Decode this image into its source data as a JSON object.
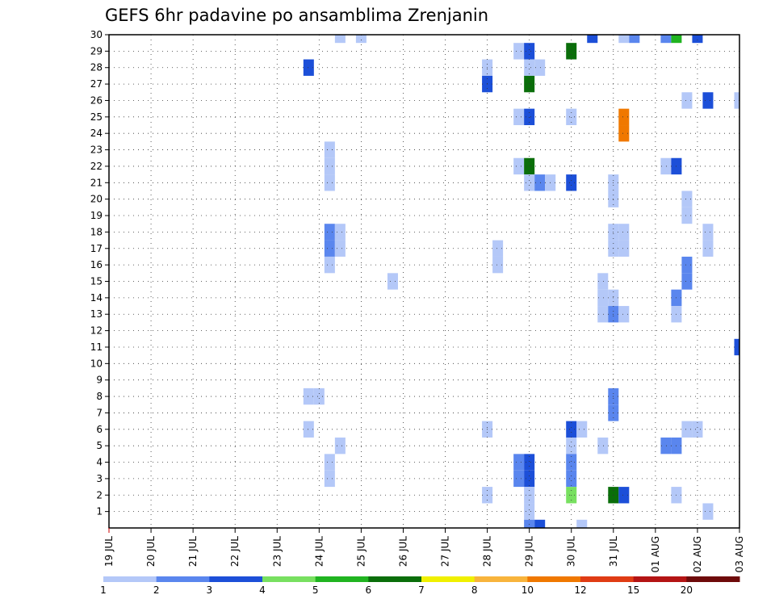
{
  "chart_data": {
    "type": "heatmap",
    "title": "GEFS 6hr padavine po ansamblima Zrenjanin",
    "xlabel": "",
    "ylabel": "",
    "x_tick_labels": [
      "19 JUL",
      "20 JUL",
      "21 JUL",
      "22 JUL",
      "23 JUL",
      "24 JUL",
      "25 JUL",
      "26 JUL",
      "27 JUL",
      "28 JUL",
      "29 JUL",
      "30 JUL",
      "31 JUL",
      "01 AUG",
      "02 AUG",
      "03 AUG"
    ],
    "x_step": "6hr",
    "ylim": [
      0,
      30
    ],
    "y_ticks": [
      1,
      2,
      3,
      4,
      5,
      6,
      7,
      8,
      9,
      10,
      11,
      12,
      13,
      14,
      15,
      16,
      17,
      18,
      19,
      20,
      21,
      22,
      23,
      24,
      25,
      26,
      27,
      28,
      29,
      30
    ],
    "grid": true,
    "colorbar": {
      "position": "bottom",
      "levels": [
        "1",
        "2",
        "3",
        "4",
        "5",
        "6",
        "7",
        "8",
        "10",
        "12",
        "15",
        "20"
      ],
      "colors": [
        "#b4c8f8",
        "#5a86ee",
        "#1c4fd8",
        "#78e060",
        "#20b420",
        "#0a6e0a",
        "#f0f000",
        "#f8b43c",
        "#f07800",
        "#e03c14",
        "#b41414",
        "#6e0a0a"
      ]
    },
    "cells": [
      {
        "m": 30,
        "t": "24 JUL 12z",
        "v": 1
      },
      {
        "m": 30,
        "t": "25 JUL 00z",
        "v": 1
      },
      {
        "m": 30,
        "t": "30 JUL 12z",
        "v": 3
      },
      {
        "m": 30,
        "t": "31 JUL 06z",
        "v": 1
      },
      {
        "m": 30,
        "t": "31 JUL 12z",
        "v": 2
      },
      {
        "m": 30,
        "t": "01 AUG 06z",
        "v": 2
      },
      {
        "m": 30,
        "t": "01 AUG 12z",
        "v": 5
      },
      {
        "m": 30,
        "t": "02 AUG 00z",
        "v": 3
      },
      {
        "m": 29,
        "t": "28 JUL 18z",
        "v": 1
      },
      {
        "m": 29,
        "t": "29 JUL 00z",
        "v": 3
      },
      {
        "m": 29,
        "t": "30 JUL 00z",
        "v": 6
      },
      {
        "m": 28,
        "t": "23 JUL 18z",
        "v": 3
      },
      {
        "m": 28,
        "t": "28 JUL 00z",
        "v": 1
      },
      {
        "m": 28,
        "t": "29 JUL 00z",
        "v": 1
      },
      {
        "m": 28,
        "t": "29 JUL 06z",
        "v": 1
      },
      {
        "m": 27,
        "t": "28 JUL 00z",
        "v": 3
      },
      {
        "m": 27,
        "t": "29 JUL 00z",
        "v": 6
      },
      {
        "m": 26,
        "t": "01 AUG 18z",
        "v": 1
      },
      {
        "m": 26,
        "t": "02 AUG 06z",
        "v": 3
      },
      {
        "m": 26,
        "t": "03 AUG 00z",
        "v": 1
      },
      {
        "m": 25,
        "t": "28 JUL 18z",
        "v": 1
      },
      {
        "m": 25,
        "t": "29 JUL 00z",
        "v": 3
      },
      {
        "m": 25,
        "t": "30 JUL 00z",
        "v": 1
      },
      {
        "m": 25,
        "t": "31 JUL 06z",
        "v": 10
      },
      {
        "m": 24,
        "t": "31 JUL 06z",
        "v": 10
      },
      {
        "m": 23,
        "t": "24 JUL 06z",
        "v": 1
      },
      {
        "m": 22,
        "t": "24 JUL 06z",
        "v": 1
      },
      {
        "m": 22,
        "t": "28 JUL 18z",
        "v": 1
      },
      {
        "m": 22,
        "t": "29 JUL 00z",
        "v": 6
      },
      {
        "m": 22,
        "t": "01 AUG 06z",
        "v": 1
      },
      {
        "m": 22,
        "t": "01 AUG 12z",
        "v": 3
      },
      {
        "m": 21,
        "t": "24 JUL 06z",
        "v": 1
      },
      {
        "m": 21,
        "t": "29 JUL 00z",
        "v": 1
      },
      {
        "m": 21,
        "t": "29 JUL 06z",
        "v": 2
      },
      {
        "m": 21,
        "t": "29 JUL 12z",
        "v": 1
      },
      {
        "m": 21,
        "t": "30 JUL 00z",
        "v": 3
      },
      {
        "m": 21,
        "t": "31 JUL 00z",
        "v": 1
      },
      {
        "m": 20,
        "t": "31 JUL 00z",
        "v": 1
      },
      {
        "m": 20,
        "t": "01 AUG 18z",
        "v": 1
      },
      {
        "m": 19,
        "t": "01 AUG 18z",
        "v": 1
      },
      {
        "m": 18,
        "t": "24 JUL 06z",
        "v": 2
      },
      {
        "m": 18,
        "t": "24 JUL 12z",
        "v": 1
      },
      {
        "m": 18,
        "t": "31 JUL 00z",
        "v": 1
      },
      {
        "m": 18,
        "t": "31 JUL 06z",
        "v": 1
      },
      {
        "m": 18,
        "t": "02 AUG 06z",
        "v": 1
      },
      {
        "m": 17,
        "t": "24 JUL 06z",
        "v": 2
      },
      {
        "m": 17,
        "t": "24 JUL 12z",
        "v": 1
      },
      {
        "m": 17,
        "t": "28 JUL 06z",
        "v": 1
      },
      {
        "m": 17,
        "t": "31 JUL 00z",
        "v": 1
      },
      {
        "m": 17,
        "t": "31 JUL 06z",
        "v": 1
      },
      {
        "m": 17,
        "t": "02 AUG 06z",
        "v": 1
      },
      {
        "m": 16,
        "t": "24 JUL 06z",
        "v": 1
      },
      {
        "m": 16,
        "t": "28 JUL 06z",
        "v": 1
      },
      {
        "m": 16,
        "t": "01 AUG 18z",
        "v": 2
      },
      {
        "m": 15,
        "t": "25 JUL 18z",
        "v": 1
      },
      {
        "m": 15,
        "t": "30 JUL 18z",
        "v": 1
      },
      {
        "m": 15,
        "t": "01 AUG 18z",
        "v": 2
      },
      {
        "m": 14,
        "t": "30 JUL 18z",
        "v": 1
      },
      {
        "m": 14,
        "t": "31 JUL 00z",
        "v": 1
      },
      {
        "m": 14,
        "t": "01 AUG 12z",
        "v": 2
      },
      {
        "m": 13,
        "t": "30 JUL 18z",
        "v": 1
      },
      {
        "m": 13,
        "t": "31 JUL 00z",
        "v": 2
      },
      {
        "m": 13,
        "t": "31 JUL 06z",
        "v": 1
      },
      {
        "m": 13,
        "t": "01 AUG 12z",
        "v": 1
      },
      {
        "m": 11,
        "t": "03 AUG 00z",
        "v": 3
      },
      {
        "m": 8,
        "t": "23 JUL 18z",
        "v": 1
      },
      {
        "m": 8,
        "t": "24 JUL 00z",
        "v": 1
      },
      {
        "m": 8,
        "t": "31 JUL 00z",
        "v": 2
      },
      {
        "m": 7,
        "t": "31 JUL 00z",
        "v": 2
      },
      {
        "m": 6,
        "t": "23 JUL 18z",
        "v": 1
      },
      {
        "m": 6,
        "t": "28 JUL 00z",
        "v": 1
      },
      {
        "m": 6,
        "t": "30 JUL 00z",
        "v": 3
      },
      {
        "m": 6,
        "t": "30 JUL 06z",
        "v": 1
      },
      {
        "m": 6,
        "t": "01 AUG 18z",
        "v": 1
      },
      {
        "m": 6,
        "t": "02 AUG 00z",
        "v": 1
      },
      {
        "m": 5,
        "t": "24 JUL 12z",
        "v": 1
      },
      {
        "m": 5,
        "t": "30 JUL 00z",
        "v": 1
      },
      {
        "m": 5,
        "t": "30 JUL 18z",
        "v": 1
      },
      {
        "m": 5,
        "t": "01 AUG 06z",
        "v": 2
      },
      {
        "m": 5,
        "t": "01 AUG 12z",
        "v": 2
      },
      {
        "m": 4,
        "t": "24 JUL 06z",
        "v": 1
      },
      {
        "m": 4,
        "t": "28 JUL 18z",
        "v": 2
      },
      {
        "m": 4,
        "t": "29 JUL 00z",
        "v": 3
      },
      {
        "m": 4,
        "t": "30 JUL 00z",
        "v": 2
      },
      {
        "m": 3,
        "t": "24 JUL 06z",
        "v": 1
      },
      {
        "m": 3,
        "t": "28 JUL 18z",
        "v": 2
      },
      {
        "m": 3,
        "t": "29 JUL 00z",
        "v": 3
      },
      {
        "m": 3,
        "t": "30 JUL 00z",
        "v": 2
      },
      {
        "m": 2,
        "t": "28 JUL 00z",
        "v": 1
      },
      {
        "m": 2,
        "t": "29 JUL 00z",
        "v": 1
      },
      {
        "m": 2,
        "t": "30 JUL 00z",
        "v": 4
      },
      {
        "m": 2,
        "t": "31 JUL 00z",
        "v": 6
      },
      {
        "m": 2,
        "t": "31 JUL 06z",
        "v": 3
      },
      {
        "m": 2,
        "t": "01 AUG 12z",
        "v": 1
      },
      {
        "m": 1,
        "t": "29 JUL 00z",
        "v": 1
      },
      {
        "m": 1,
        "t": "02 AUG 06z",
        "v": 1
      },
      {
        "m": 0,
        "t": "29 JUL 00z",
        "v": 2
      },
      {
        "m": 0,
        "t": "29 JUL 06z",
        "v": 3
      },
      {
        "m": 0,
        "t": "30 JUL 06z",
        "v": 1
      }
    ]
  }
}
